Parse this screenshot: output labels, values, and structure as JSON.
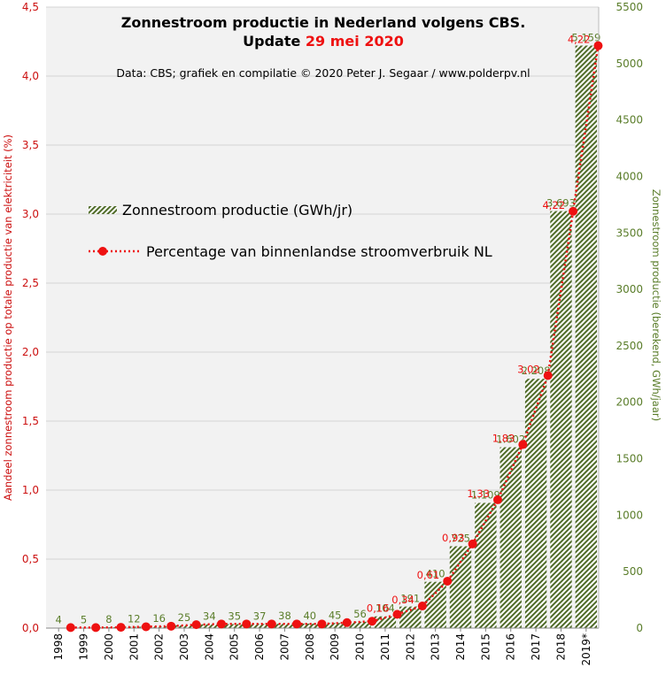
{
  "chart_data": {
    "type": "bar",
    "title_line1": "Zonnestroom productie in Nederland volgens CBS.",
    "title_line2_prefix": "Update",
    "title_line2_date": "29 mei 2020",
    "subtitle": "Data: CBS;  grafiek en compilatie  © 2020 Peter J. Segaar / www.polderpv.nl",
    "ylabel_left": "Aandeel zonnestroom productie op totale productie van elektriciteit (%)",
    "ylabel_right": "Zonnestroom productie (berekend, GWh/jaar)",
    "categories": [
      "1998",
      "1999",
      "2000",
      "2001",
      "2002",
      "2003",
      "2004",
      "2005",
      "2006",
      "2007",
      "2008",
      "2009",
      "2010",
      "2011",
      "2012",
      "2013",
      "2014",
      "2015",
      "2016",
      "2017",
      "2018",
      "2019*"
    ],
    "series": [
      {
        "name": "Zonnestroom productie (GWh/jr)",
        "axis": "right",
        "kind": "bar",
        "values": [
          4,
          5,
          8,
          12,
          16,
          25,
          34,
          35,
          37,
          38,
          40,
          45,
          56,
          104,
          191,
          410,
          725,
          1109,
          1602,
          2208,
          3693,
          5159
        ],
        "labels": [
          "4",
          "5",
          "8",
          "12",
          "16",
          "25",
          "34",
          "35",
          "37",
          "38",
          "40",
          "45",
          "56",
          "104",
          "191",
          "410",
          "725",
          "1.109",
          "1.602",
          "2.208",
          "3.693",
          "5.159"
        ]
      },
      {
        "name": "Percentage van binnenlandse stroomverbruik NL",
        "axis": "left",
        "kind": "line",
        "values": [
          0.004,
          0.004,
          0.006,
          0.01,
          0.014,
          0.025,
          0.03,
          0.03,
          0.03,
          0.03,
          0.03,
          0.04,
          0.05,
          0.1,
          0.16,
          0.34,
          0.61,
          0.93,
          1.33,
          1.83,
          3.02,
          4.22
        ],
        "labels": [
          "",
          "",
          "",
          "",
          "",
          "",
          "",
          "",
          "",
          "",
          "",
          "",
          "",
          "0,16",
          "0,34",
          "0,61",
          "0,93",
          "1,33",
          "1,83",
          "3,02",
          "4,22",
          ""
        ],
        "label_offset_index": 1
      }
    ],
    "ylim_left": [
      0,
      4.5
    ],
    "yticks_left": [
      "0,0",
      "0,5",
      "1,0",
      "1,5",
      "2,0",
      "2,5",
      "3,0",
      "3,5",
      "4,0",
      "4,5"
    ],
    "ylim_right": [
      0,
      5500
    ],
    "yticks_right": [
      "0",
      "500",
      "1000",
      "1500",
      "2000",
      "2500",
      "3000",
      "3500",
      "4000",
      "4500",
      "5000",
      "5500"
    ],
    "grid": true,
    "legend_position": "middle-left",
    "colors": {
      "bar_stripe": "#4f6b28",
      "bar_label": "#5a7d2a",
      "line": "#ee1111",
      "left_axis": "#cc1111",
      "right_axis": "#5a7d2a",
      "title_date": "#ee1111"
    }
  }
}
